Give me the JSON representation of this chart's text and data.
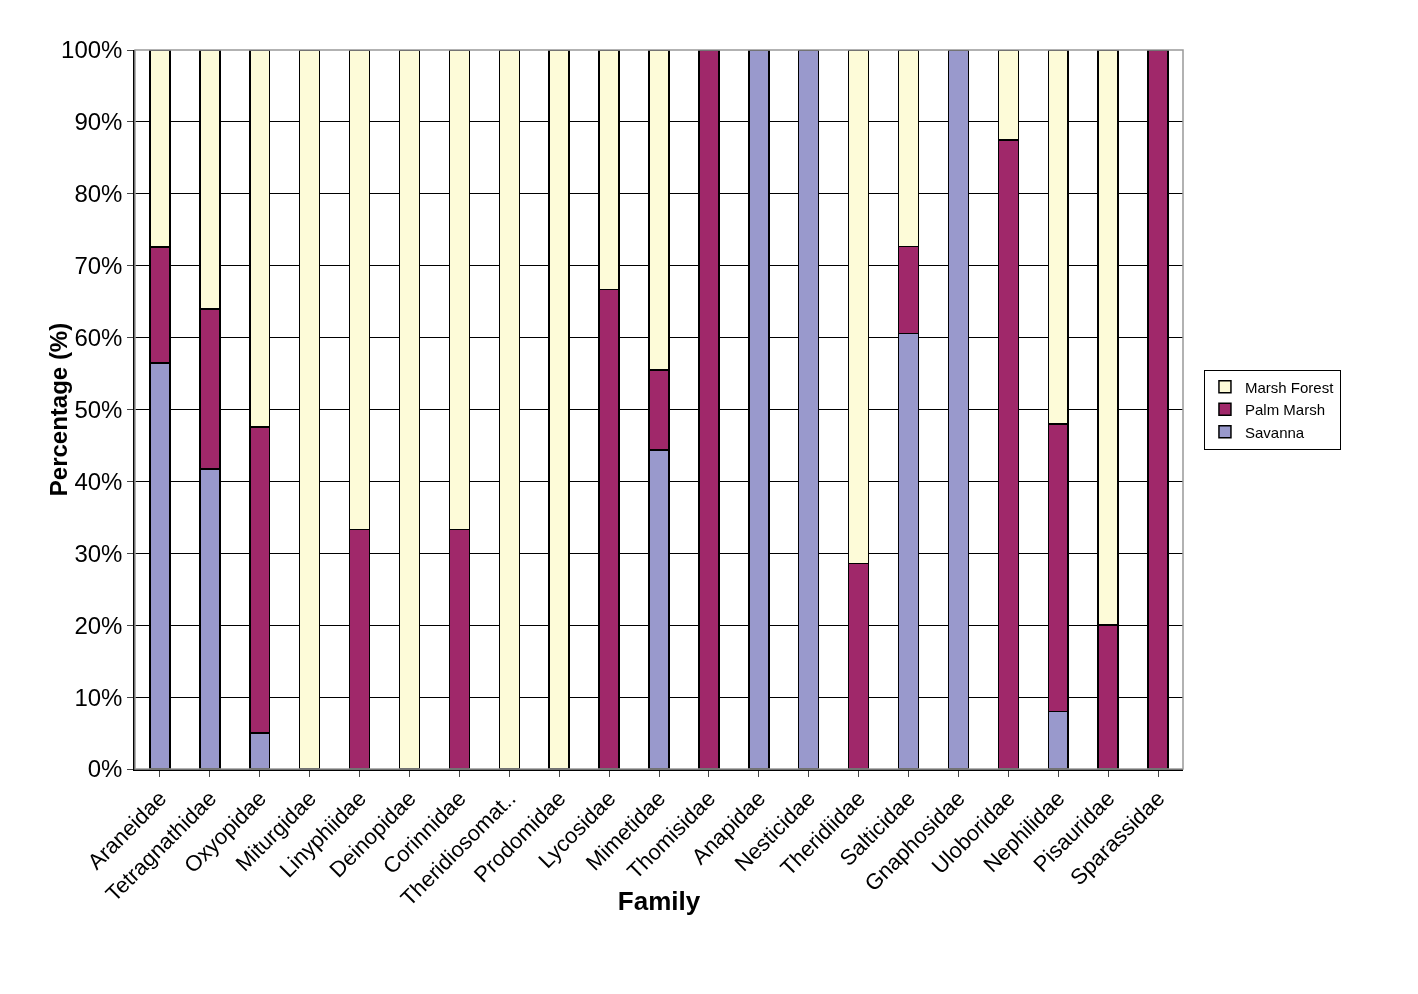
{
  "chart_data": {
    "type": "bar",
    "stacked": true,
    "xlabel": "Family",
    "ylabel": "Percentage (%)",
    "categories": [
      "Araneidae",
      "Tetragnathidae",
      "Oxyopidae",
      "Miturgidae",
      "Linyphiidae",
      "Deinopidae",
      "Corinnidae",
      "Theridiosomat..",
      "Prodomidae",
      "Lycosidae",
      "Mimetidae",
      "Thomisidae",
      "Anapidae",
      "Nesticidae",
      "Theridiidae",
      "Salticidae",
      "Gnaphosidae",
      "Uloboridae",
      "Nephilidae",
      "Pisauridae",
      "Sparassidae"
    ],
    "series": [
      {
        "name": "Savanna",
        "color": "#9999cc",
        "values": [
          56.5,
          41.7,
          5,
          null,
          null,
          null,
          null,
          null,
          null,
          null,
          44.4,
          null,
          100,
          100,
          null,
          60.6,
          100,
          null,
          8,
          null,
          null
        ]
      },
      {
        "name": "Palm Marsh",
        "color": "#a0286a",
        "values": [
          16.1,
          22.3,
          42.6,
          null,
          33.3,
          null,
          33.3,
          null,
          null,
          66.7,
          11.1,
          100,
          null,
          null,
          28.6,
          12.1,
          null,
          87.5,
          40,
          20,
          100
        ]
      },
      {
        "name": "Marsh Forest",
        "color": "#fdfbd8",
        "values": [
          27.4,
          36,
          52.4,
          100,
          66.7,
          100,
          66.7,
          100,
          100,
          33.3,
          44.5,
          null,
          null,
          null,
          71.4,
          27.3,
          null,
          12.5,
          52,
          80,
          null
        ]
      }
    ],
    "ylim": [
      0,
      100
    ],
    "yticks": [
      {
        "value": 0,
        "label": "0%"
      },
      {
        "value": 10,
        "label": "10%"
      },
      {
        "value": 20,
        "label": "20%"
      },
      {
        "value": 30,
        "label": "30%"
      },
      {
        "value": 40,
        "label": "40%"
      },
      {
        "value": 50,
        "label": "50%"
      },
      {
        "value": 60,
        "label": "60%"
      },
      {
        "value": 70,
        "label": "70%"
      },
      {
        "value": 80,
        "label": "80%"
      },
      {
        "value": 90,
        "label": "90%"
      },
      {
        "value": 100,
        "label": "100%"
      }
    ],
    "grid": "y",
    "legend": "right"
  }
}
